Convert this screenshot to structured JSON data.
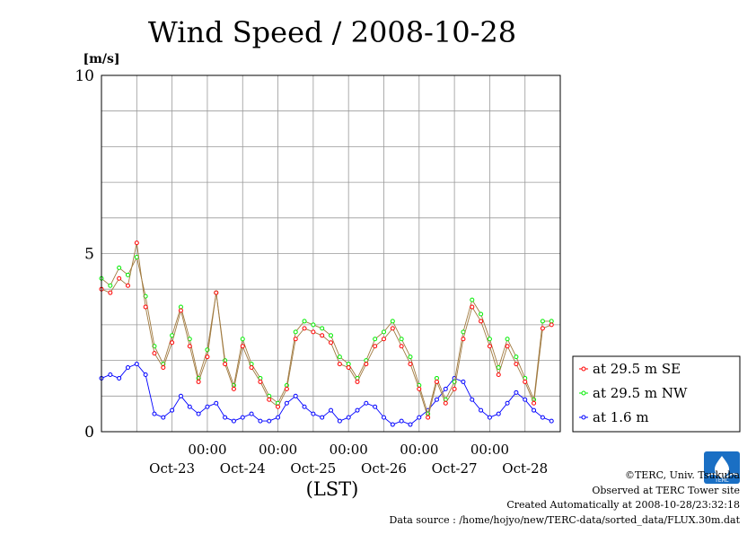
{
  "chart_data": {
    "type": "line",
    "title": "Wind Speed / 2008-10-28",
    "ylabel": "[m/s]",
    "xlabel": "(LST)",
    "ylim": [
      0,
      10
    ],
    "yticks": [
      "0",
      "5",
      "10"
    ],
    "xlim": [
      "2008-10-22T12:00",
      "2008-10-28T23:59"
    ],
    "x_time_labels": [
      "00:00",
      "00:00",
      "00:00",
      "00:00",
      "00:00"
    ],
    "x_date_labels": [
      "Oct-23",
      "Oct-24",
      "Oct-25",
      "Oct-26",
      "Oct-27",
      "Oct-28"
    ],
    "grid": true,
    "legend_position": "right",
    "x": [
      "2008-10-22T12:00",
      "2008-10-22T15:00",
      "2008-10-22T18:00",
      "2008-10-22T21:00",
      "2008-10-23T00:00",
      "2008-10-23T03:00",
      "2008-10-23T06:00",
      "2008-10-23T09:00",
      "2008-10-23T12:00",
      "2008-10-23T15:00",
      "2008-10-23T18:00",
      "2008-10-23T21:00",
      "2008-10-24T00:00",
      "2008-10-24T03:00",
      "2008-10-24T06:00",
      "2008-10-24T09:00",
      "2008-10-24T12:00",
      "2008-10-24T15:00",
      "2008-10-24T18:00",
      "2008-10-24T21:00",
      "2008-10-25T00:00",
      "2008-10-25T03:00",
      "2008-10-25T06:00",
      "2008-10-25T09:00",
      "2008-10-25T12:00",
      "2008-10-25T15:00",
      "2008-10-25T18:00",
      "2008-10-25T21:00",
      "2008-10-26T00:00",
      "2008-10-26T03:00",
      "2008-10-26T06:00",
      "2008-10-26T09:00",
      "2008-10-26T12:00",
      "2008-10-26T15:00",
      "2008-10-26T18:00",
      "2008-10-26T21:00",
      "2008-10-27T00:00",
      "2008-10-27T03:00",
      "2008-10-27T06:00",
      "2008-10-27T09:00",
      "2008-10-27T12:00",
      "2008-10-27T15:00",
      "2008-10-27T18:00",
      "2008-10-27T21:00",
      "2008-10-28T00:00",
      "2008-10-28T03:00",
      "2008-10-28T06:00",
      "2008-10-28T09:00",
      "2008-10-28T12:00",
      "2008-10-28T15:00",
      "2008-10-28T18:00",
      "2008-10-28T21:00"
    ],
    "series": [
      {
        "name": "at 29.5 m SE",
        "color": "#ff0000",
        "values": [
          4.0,
          3.9,
          4.3,
          4.1,
          5.3,
          3.5,
          2.2,
          1.8,
          2.5,
          3.4,
          2.4,
          1.4,
          2.1,
          3.9,
          1.9,
          1.2,
          2.4,
          1.8,
          1.4,
          0.9,
          0.7,
          1.2,
          2.6,
          2.9,
          2.8,
          2.7,
          2.5,
          1.9,
          1.8,
          1.4,
          1.9,
          2.4,
          2.6,
          2.9,
          2.4,
          1.9,
          1.2,
          0.4,
          1.4,
          0.8,
          1.2,
          2.6,
          3.5,
          3.1,
          2.4,
          1.6,
          2.4,
          1.9,
          1.4,
          0.8,
          2.9,
          3.0
        ]
      },
      {
        "name": "at 29.5 m NW",
        "color": "#00ee00",
        "values": [
          4.3,
          4.1,
          4.6,
          4.4,
          4.9,
          3.8,
          2.4,
          1.9,
          2.7,
          3.5,
          2.6,
          1.5,
          2.3,
          3.9,
          2.0,
          1.3,
          2.6,
          1.9,
          1.5,
          1.0,
          0.8,
          1.3,
          2.8,
          3.1,
          3.0,
          2.9,
          2.7,
          2.1,
          1.9,
          1.5,
          2.0,
          2.6,
          2.8,
          3.1,
          2.6,
          2.1,
          1.3,
          0.5,
          1.5,
          0.9,
          1.4,
          2.8,
          3.7,
          3.3,
          2.6,
          1.8,
          2.6,
          2.1,
          1.5,
          0.9,
          3.1,
          3.1
        ]
      },
      {
        "name": "at 1.6 m",
        "color": "#0000ff",
        "values": [
          1.5,
          1.6,
          1.5,
          1.8,
          1.9,
          1.6,
          0.5,
          0.4,
          0.6,
          1.0,
          0.7,
          0.5,
          0.7,
          0.8,
          0.4,
          0.3,
          0.4,
          0.5,
          0.3,
          0.3,
          0.4,
          0.8,
          1.0,
          0.7,
          0.5,
          0.4,
          0.6,
          0.3,
          0.4,
          0.6,
          0.8,
          0.7,
          0.4,
          0.2,
          0.3,
          0.2,
          0.4,
          0.6,
          0.9,
          1.2,
          1.5,
          1.4,
          0.9,
          0.6,
          0.4,
          0.5,
          0.8,
          1.1,
          0.9,
          0.6,
          0.4,
          0.3
        ]
      }
    ]
  },
  "credits": {
    "copyright": "©TERC, Univ. Tsukuba",
    "observed": "Observed at TERC Tower site",
    "created": "Created Automatically at 2008-10-28/23:32:18",
    "source": "Data source : /home/hojyo/new/TERC-data/sorted_data/FLUX.30m.dat"
  },
  "logo": {
    "label": "TERC",
    "color": "#1a6fc4"
  }
}
